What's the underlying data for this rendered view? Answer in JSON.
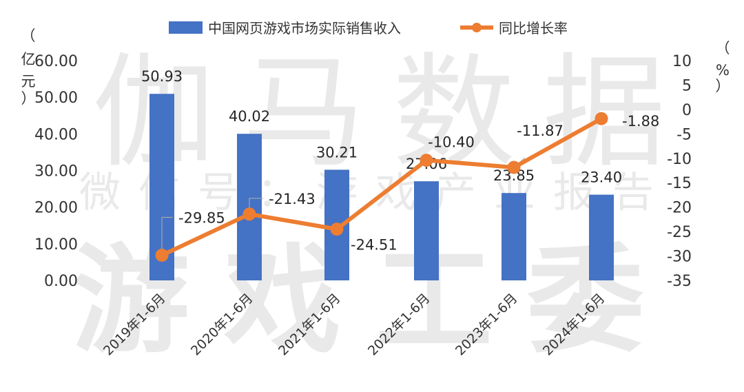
{
  "watermark": {
    "line1": "伽马数据",
    "line2": "微信号：游戏产业报告",
    "line3": "游戏工委"
  },
  "colors": {
    "bar": "#4472c4",
    "line": "#ed7d31"
  },
  "chart_data": {
    "type": "bar",
    "categories": [
      "2019年1-6月",
      "2020年1-6月",
      "2021年1-6月",
      "2022年1-6月",
      "2023年1-6月",
      "2024年1-6月"
    ],
    "series": [
      {
        "name": "中国网页游戏市场实际销售收入",
        "type": "bar",
        "axis": "left",
        "values": [
          50.93,
          40.02,
          30.21,
          27.06,
          23.85,
          23.4
        ],
        "labels": [
          "50.93",
          "40.02",
          "30.21",
          "27.06",
          "23.85",
          "23.40"
        ]
      },
      {
        "name": "同比增长率",
        "type": "line",
        "axis": "right",
        "values": [
          -29.85,
          -21.43,
          -24.51,
          -10.4,
          -11.87,
          -1.88
        ],
        "labels": [
          "-29.85",
          "-21.43",
          "-24.51",
          "-10.40",
          "-11.87",
          "-1.88"
        ]
      }
    ],
    "y_left": {
      "label": "（亿元）",
      "range": [
        0,
        60
      ],
      "ticks": [
        0,
        10,
        20,
        30,
        40,
        50,
        60
      ],
      "tick_labels": [
        "0.00",
        "10.00",
        "20.00",
        "30.00",
        "40.00",
        "50.00",
        "60.00"
      ]
    },
    "y_right": {
      "label": "（%）",
      "range": [
        -35,
        10
      ],
      "ticks": [
        -35,
        -30,
        -25,
        -20,
        -15,
        -10,
        -5,
        0,
        5,
        10
      ],
      "tick_labels": [
        "-35",
        "-30",
        "-25",
        "-20",
        "-15",
        "-10",
        "-5",
        "0",
        "5",
        "10"
      ]
    },
    "legend_position": "top",
    "grid": false
  }
}
